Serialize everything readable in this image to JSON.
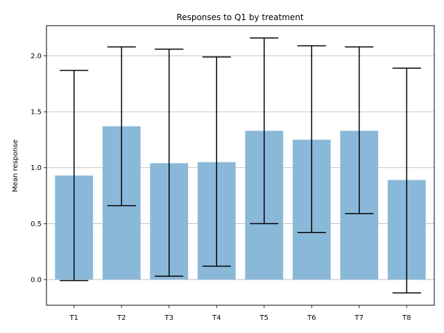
{
  "chart_data": {
    "type": "bar",
    "title": "Responses to Q1 by treatment",
    "xlabel": "",
    "ylabel": "Mean response",
    "categories": [
      "T1",
      "T2",
      "T3",
      "T4",
      "T5",
      "T6",
      "T7",
      "T8"
    ],
    "values": [
      0.93,
      1.37,
      1.04,
      1.05,
      1.33,
      1.25,
      1.33,
      0.89
    ],
    "error_low": [
      -0.01,
      0.66,
      0.03,
      0.12,
      0.5,
      0.42,
      0.59,
      -0.12
    ],
    "error_high": [
      1.87,
      2.08,
      2.06,
      1.99,
      2.16,
      2.09,
      2.08,
      1.89
    ],
    "ylim": [
      -0.23,
      2.27
    ],
    "yticks": [
      "0.0",
      "0.5",
      "1.0",
      "1.5",
      "2.0"
    ],
    "grid": "horizontal",
    "legend": "none",
    "bar_color": "#8ab8d9",
    "error_color": "#000000",
    "grid_color": "#b0b0b0"
  }
}
